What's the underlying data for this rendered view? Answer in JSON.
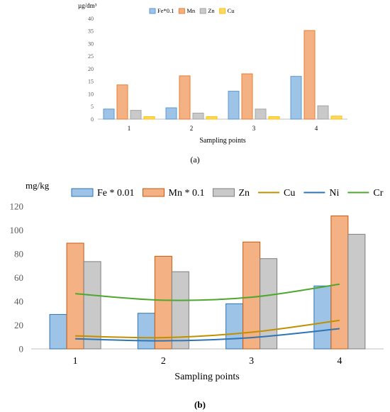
{
  "chart_data": [
    {
      "type": "bar",
      "ylabel": "µg/dm³",
      "xlabel": "Sampling points",
      "caption": "(a)",
      "categories": [
        "1",
        "2",
        "3",
        "4"
      ],
      "ylim": [
        0,
        40
      ],
      "yticks": [
        0,
        5,
        10,
        15,
        20,
        25,
        30,
        35,
        40
      ],
      "grid": false,
      "legend_position": "top",
      "series": [
        {
          "name": "Fe*0.1",
          "color": "#9dc3e6",
          "edge": "#5b9bd5",
          "values": [
            4.0,
            4.5,
            11.1,
            17.0
          ]
        },
        {
          "name": "Mn",
          "color": "#f4b183",
          "edge": "#ed7d31",
          "values": [
            13.6,
            17.2,
            18.0,
            35.2
          ]
        },
        {
          "name": "Zn",
          "color": "#c9c9c9",
          "edge": "#a5a5a5",
          "values": [
            3.5,
            2.4,
            4.0,
            5.3
          ]
        },
        {
          "name": "Cu",
          "color": "#ffd966",
          "edge": "#ffc000",
          "values": [
            1.0,
            1.0,
            1.0,
            1.2
          ]
        }
      ]
    },
    {
      "type": "bar",
      "ylabel": "mg/kg",
      "xlabel": "Sampling points",
      "caption": "(b)",
      "categories": [
        "1",
        "2",
        "3",
        "4"
      ],
      "ylim": [
        0,
        120
      ],
      "yticks": [
        0,
        20,
        40,
        60,
        80,
        100,
        120
      ],
      "grid": false,
      "legend_position": "top",
      "series": [
        {
          "name": "Fe * 0.01",
          "kind": "bar",
          "color": "#9dc3e6",
          "edge": "#2e75b6",
          "values": [
            29,
            30,
            38,
            53
          ]
        },
        {
          "name": "Mn * 0.1",
          "kind": "bar",
          "color": "#f4b183",
          "edge": "#c55a11",
          "values": [
            89,
            78,
            90,
            112
          ]
        },
        {
          "name": "Zn",
          "kind": "bar",
          "color": "#c9c9c9",
          "edge": "#7f7f7f",
          "values": [
            73.5,
            65,
            76,
            96.5
          ]
        },
        {
          "name": "Cu",
          "kind": "line",
          "color": "#bf9000",
          "values": [
            11,
            9.5,
            14,
            24
          ]
        },
        {
          "name": "Ni",
          "kind": "line",
          "color": "#2e75b6",
          "values": [
            8.5,
            6.8,
            9.5,
            17
          ]
        },
        {
          "name": "Cr",
          "kind": "line",
          "color": "#4ea72e",
          "values": [
            46.5,
            41,
            43.5,
            54.5
          ]
        }
      ]
    }
  ]
}
